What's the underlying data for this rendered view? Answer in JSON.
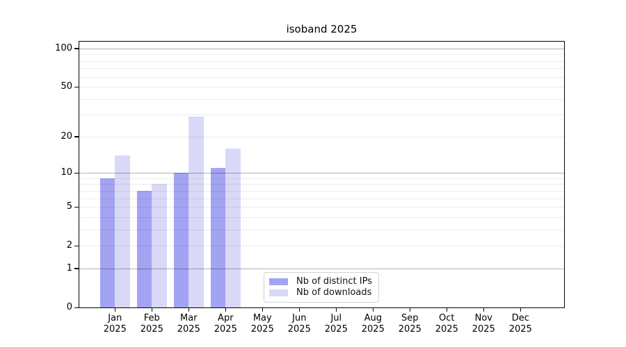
{
  "chart_data": {
    "type": "bar",
    "title": "isoband 2025",
    "categories": [
      "Jan",
      "Feb",
      "Mar",
      "Apr",
      "May",
      "Jun",
      "Jul",
      "Aug",
      "Sep",
      "Oct",
      "Nov",
      "Dec"
    ],
    "year_label": "2025",
    "series": [
      {
        "name": "Nb of distinct IPs",
        "color": "#a3a3f3",
        "values": [
          9,
          7,
          10,
          11,
          0,
          0,
          0,
          0,
          0,
          0,
          0,
          0
        ]
      },
      {
        "name": "Nb of downloads",
        "color": "#d9d9f7",
        "values": [
          14,
          8,
          29,
          16,
          0,
          0,
          0,
          0,
          0,
          0,
          0,
          0
        ]
      }
    ],
    "y_axis": {
      "scale": "log1p",
      "tick_labels": [
        0,
        1,
        2,
        5,
        10,
        20,
        50,
        100
      ],
      "max": 113.3
    },
    "grid": {
      "major": [
        1,
        10,
        100
      ],
      "minor": [
        2,
        3,
        4,
        5,
        6,
        7,
        8,
        9,
        20,
        30,
        40,
        50,
        60,
        70,
        80,
        90
      ]
    },
    "legend": {
      "position": "bottom-center"
    },
    "colors": {
      "axis": "#000000",
      "grid_major": "#b3b3b3",
      "grid_minor": "#ebebeb",
      "background": "#ffffff"
    }
  }
}
